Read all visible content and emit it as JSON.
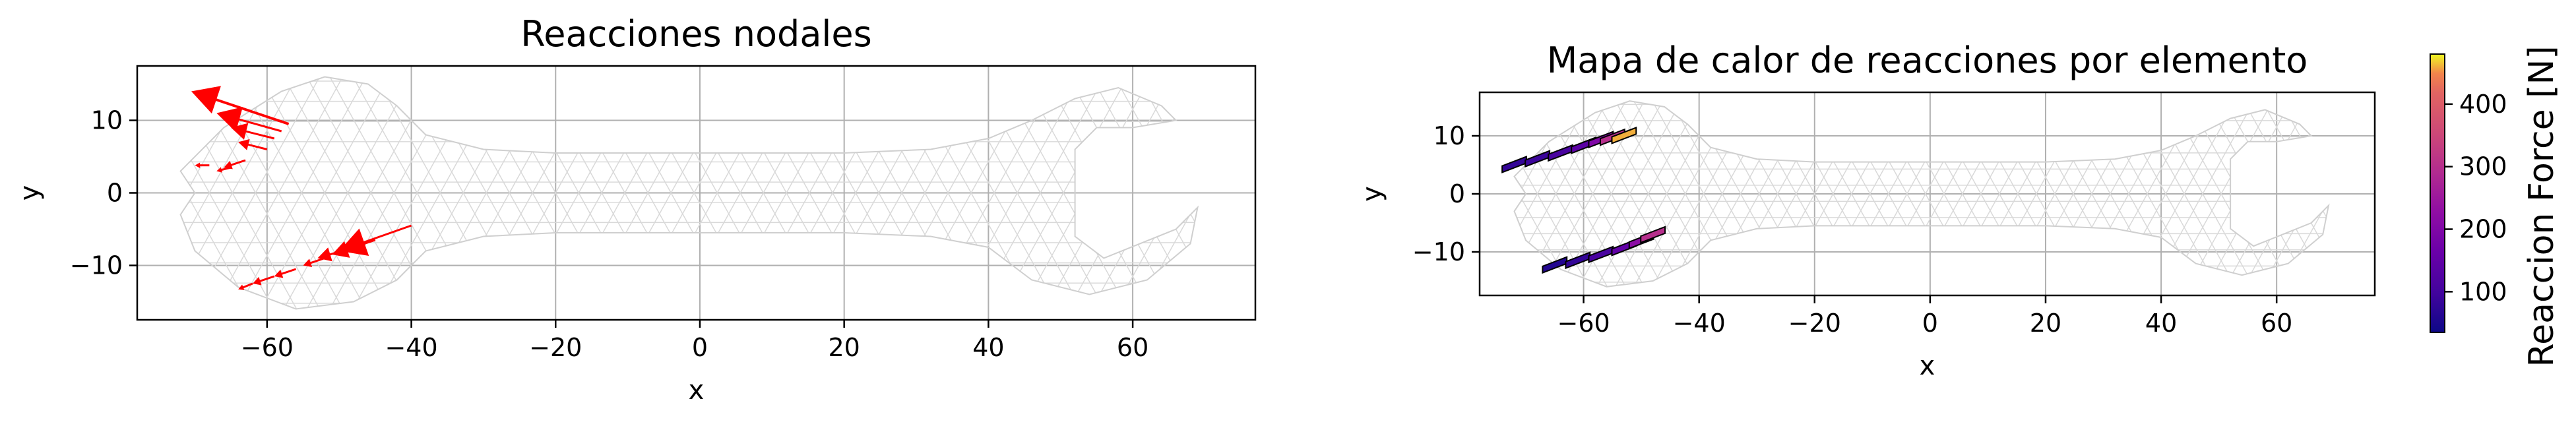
{
  "chart_data": [
    {
      "type": "vector-field",
      "title": "Reacciones nodales",
      "xlabel": "x",
      "ylabel": "y",
      "xlim": [
        -78,
        77
      ],
      "ylim": [
        -17.5,
        17.5
      ],
      "xticks": [
        -60,
        -40,
        -20,
        0,
        20,
        40,
        60
      ],
      "yticks": [
        10,
        0,
        -10
      ],
      "grid": true,
      "colors": {
        "arrow": "#ff0000",
        "mesh": "#d9d9d9"
      },
      "mesh_outline": "wrench",
      "vectors": [
        {
          "x": -57,
          "y": 9.5,
          "u": -13.5,
          "v": 4.5
        },
        {
          "x": -58,
          "y": 8.5,
          "u": -9,
          "v": 2.5
        },
        {
          "x": -59,
          "y": 7.5,
          "u": -6,
          "v": 1.5
        },
        {
          "x": -60,
          "y": 6.0,
          "u": -4,
          "v": 1.0
        },
        {
          "x": -63,
          "y": 4.5,
          "u": -3,
          "v": -1.0
        },
        {
          "x": -65,
          "y": 3.5,
          "u": -2,
          "v": -0.5
        },
        {
          "x": -68,
          "y": 3.8,
          "u": -2,
          "v": 0
        },
        {
          "x": -40,
          "y": -4.5,
          "u": -10,
          "v": -3.5
        },
        {
          "x": -45,
          "y": -6.5,
          "u": -6,
          "v": -2.0
        },
        {
          "x": -48,
          "y": -7.5,
          "u": -5,
          "v": -1.5
        },
        {
          "x": -52,
          "y": -9.0,
          "u": -3,
          "v": -1.0
        },
        {
          "x": -56,
          "y": -10.5,
          "u": -3,
          "v": -1.0
        },
        {
          "x": -59,
          "y": -11.5,
          "u": -3,
          "v": -1.0
        },
        {
          "x": -62,
          "y": -12.5,
          "u": -2,
          "v": -0.8
        }
      ]
    },
    {
      "type": "heatmap",
      "title": "Mapa de calor de reacciones por elemento",
      "xlabel": "x",
      "ylabel": "y",
      "xlim": [
        -78,
        77
      ],
      "ylim": [
        -17.5,
        17.5
      ],
      "xticks": [
        -60,
        -40,
        -20,
        0,
        20,
        40,
        60
      ],
      "yticks": [
        10,
        0,
        -10
      ],
      "grid": true,
      "colormap": "plasma",
      "colorbar": {
        "label": "Reaccion Force [N]",
        "range": [
          35,
          480
        ],
        "ticks": [
          100,
          200,
          300,
          400
        ]
      },
      "mesh_outline": "wrench",
      "colored_elements": [
        {
          "x": -72,
          "y": 4.5,
          "value": 80
        },
        {
          "x": -68,
          "y": 5.5,
          "value": 90
        },
        {
          "x": -64,
          "y": 6.5,
          "value": 110
        },
        {
          "x": -60,
          "y": 7.8,
          "value": 140
        },
        {
          "x": -57,
          "y": 8.8,
          "value": 200
        },
        {
          "x": -55,
          "y": 9.2,
          "value": 300
        },
        {
          "x": -53,
          "y": 9.5,
          "value": 460
        },
        {
          "x": -65,
          "y": -12.8,
          "value": 60
        },
        {
          "x": -61,
          "y": -12.0,
          "value": 80
        },
        {
          "x": -57,
          "y": -11.0,
          "value": 110
        },
        {
          "x": -53,
          "y": -9.8,
          "value": 150
        },
        {
          "x": -50,
          "y": -8.6,
          "value": 220
        },
        {
          "x": -48,
          "y": -7.6,
          "value": 300
        }
      ]
    }
  ]
}
